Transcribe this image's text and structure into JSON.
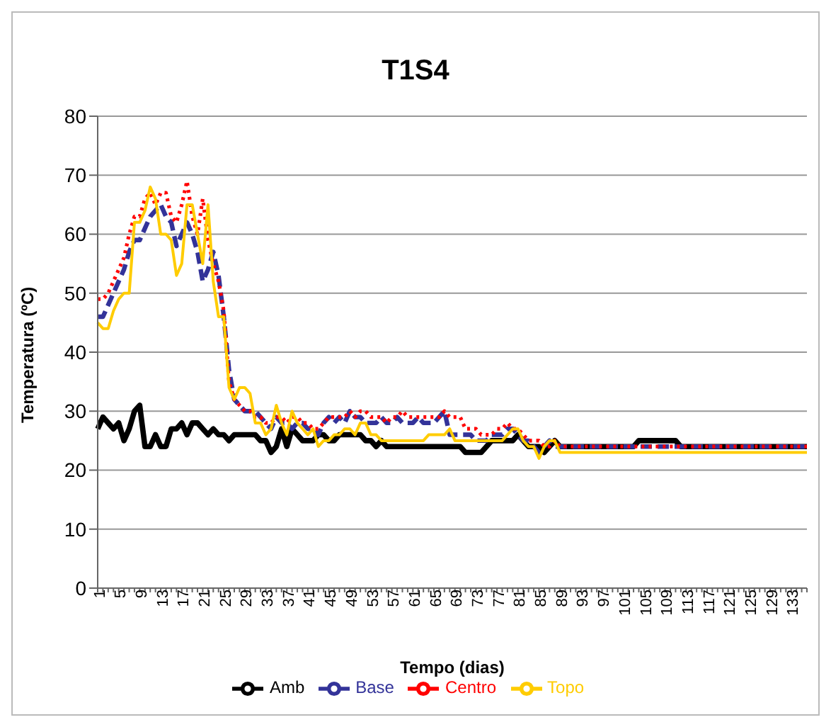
{
  "chart_data": {
    "type": "line",
    "title": "T1S4",
    "xlabel": "Tempo (dias)",
    "ylabel": "Temperatura (ºC)",
    "categories": [
      "1",
      null,
      null,
      null,
      "5",
      null,
      null,
      null,
      "9",
      null,
      null,
      null,
      "13",
      null,
      null,
      null,
      "17",
      null,
      null,
      null,
      "21",
      null,
      null,
      null,
      "25",
      null,
      null,
      null,
      "29",
      null,
      null,
      null,
      "33",
      null,
      null,
      null,
      "37",
      null,
      null,
      null,
      "41",
      null,
      null,
      null,
      "45",
      null,
      null,
      null,
      "49",
      null,
      null,
      null,
      "53",
      null,
      null,
      null,
      "57",
      null,
      null,
      null,
      "61",
      null,
      null,
      null,
      "65",
      null,
      null,
      null,
      "69",
      null,
      null,
      null,
      "73",
      null,
      null,
      null,
      "77",
      null,
      null,
      null,
      "81",
      null,
      null,
      null,
      "85",
      null,
      null,
      null,
      "89",
      null,
      null,
      null,
      "93",
      null,
      null,
      null,
      "97",
      null,
      null,
      null,
      "101",
      null,
      null,
      null,
      "105",
      null,
      null,
      null,
      "109",
      null,
      null,
      null,
      "113",
      null,
      null,
      null,
      "117",
      null,
      null,
      null,
      "121",
      null,
      null,
      null,
      "125",
      null,
      null,
      null,
      "129",
      null,
      null,
      null,
      "133",
      null,
      null,
      null
    ],
    "series": [
      {
        "name": "Amb",
        "color": "#000000",
        "line_style": "solid",
        "values": [
          27,
          29,
          28,
          27,
          28,
          25,
          27,
          30,
          31,
          24,
          24,
          26,
          24,
          24,
          27,
          27,
          28,
          26,
          28,
          28,
          27,
          26,
          27,
          26,
          26,
          25,
          26,
          26,
          26,
          26,
          26,
          25,
          25,
          23,
          24,
          27,
          24,
          27,
          26,
          25,
          25,
          25,
          26,
          26,
          25,
          25,
          26,
          26,
          26,
          26,
          26,
          25,
          25,
          24,
          25,
          24,
          24,
          24,
          24,
          24,
          24,
          24,
          24,
          24,
          24,
          24,
          24,
          24,
          24,
          24,
          23,
          23,
          23,
          23,
          24,
          25,
          25,
          25,
          25,
          25,
          26,
          25,
          24,
          24,
          24,
          23,
          24,
          25,
          24,
          24,
          24,
          24,
          24,
          24,
          24,
          24,
          24,
          24,
          24,
          24,
          24,
          24,
          24,
          25,
          25,
          25,
          25,
          25,
          25,
          25,
          25,
          24,
          24,
          24,
          24,
          24,
          24,
          24,
          24,
          24,
          24,
          24,
          24,
          24,
          24,
          24,
          24,
          24,
          24,
          24,
          24,
          24,
          24,
          24,
          24,
          24
        ]
      },
      {
        "name": "Base",
        "color": "#333399",
        "line_style": "dashed",
        "values": [
          46,
          46,
          48,
          50,
          52,
          54,
          57,
          59,
          59,
          61,
          63,
          64,
          65,
          63,
          62,
          58,
          60,
          62,
          60,
          57,
          52,
          54,
          57,
          53,
          46,
          37,
          32,
          31,
          30,
          30,
          30,
          29,
          28,
          27,
          29,
          28,
          28,
          27,
          28,
          28,
          27,
          27,
          26,
          28,
          29,
          28,
          29,
          28,
          30,
          29,
          29,
          28,
          28,
          28,
          29,
          28,
          28,
          29,
          28,
          28,
          28,
          29,
          28,
          28,
          28,
          29,
          30,
          26,
          26,
          26,
          26,
          26,
          25,
          25,
          25,
          26,
          26,
          26,
          27,
          27,
          26,
          25,
          25,
          24,
          23,
          24,
          25,
          24,
          24,
          24,
          24,
          24,
          24,
          24,
          24,
          24,
          24,
          24,
          24,
          24,
          24,
          24,
          24,
          24,
          24,
          24,
          24,
          24,
          24,
          24,
          24,
          24,
          24,
          24,
          24,
          24,
          24,
          24,
          24,
          24,
          24,
          24,
          24,
          24,
          24,
          24,
          24,
          24,
          24,
          24,
          24,
          24,
          24,
          24,
          24,
          24
        ]
      },
      {
        "name": "Centro",
        "color": "#ff0000",
        "line_style": "dotted",
        "values": [
          49,
          49,
          50,
          52,
          54,
          56,
          60,
          63,
          63,
          66,
          67,
          65,
          67,
          67,
          63,
          62,
          65,
          69,
          63,
          60,
          66,
          59,
          55,
          52,
          47,
          35,
          32,
          31,
          30,
          30,
          29,
          29,
          28,
          28,
          29,
          29,
          28,
          29,
          29,
          28,
          28,
          27,
          27,
          28,
          29,
          29,
          29,
          29,
          30,
          29,
          30,
          30,
          29,
          29,
          29,
          28,
          29,
          29,
          30,
          29,
          29,
          29,
          29,
          29,
          29,
          29,
          30,
          29,
          29,
          29,
          27,
          27,
          27,
          26,
          26,
          26,
          27,
          27,
          28,
          27,
          27,
          26,
          25,
          25,
          25,
          24,
          24,
          25,
          24,
          24,
          24,
          24,
          24,
          24,
          24,
          24,
          24,
          24,
          24,
          24,
          24,
          24,
          24,
          24,
          24,
          24,
          24,
          24,
          24,
          24,
          24,
          24,
          24,
          24,
          24,
          24,
          24,
          24,
          24,
          24,
          24,
          24,
          24,
          24,
          24,
          24,
          24,
          24,
          24,
          24,
          24,
          24,
          24,
          24,
          24,
          24
        ]
      },
      {
        "name": "Topo",
        "color": "#ffcc00",
        "line_style": "solid",
        "values": [
          45,
          44,
          44,
          47,
          49,
          50,
          50,
          62,
          62,
          64,
          68,
          66,
          60,
          60,
          59,
          53,
          55,
          65,
          65,
          60,
          55,
          65,
          52,
          46,
          46,
          34,
          32,
          34,
          34,
          33,
          28,
          28,
          26,
          27,
          31,
          28,
          26,
          30,
          28,
          27,
          26,
          27,
          24,
          25,
          25,
          26,
          26,
          27,
          27,
          26,
          28,
          28,
          26,
          26,
          25,
          25,
          25,
          25,
          25,
          25,
          25,
          25,
          25,
          26,
          26,
          26,
          26,
          27,
          25,
          25,
          25,
          25,
          25,
          25,
          25,
          25,
          25,
          25,
          26,
          27,
          27,
          25,
          24,
          24,
          22,
          24,
          25,
          25,
          23,
          23,
          23,
          23,
          23,
          23,
          23,
          23,
          23,
          23,
          23,
          23,
          23,
          23,
          23,
          23,
          23,
          23,
          23,
          23,
          23,
          23,
          23,
          23,
          23,
          23,
          23,
          23,
          23,
          23,
          23,
          23,
          23,
          23,
          23,
          23,
          23,
          23,
          23,
          23,
          23,
          23,
          23,
          23,
          23,
          23,
          23,
          23
        ]
      }
    ],
    "ylim": [
      0,
      80
    ],
    "yticks": [
      0,
      10,
      20,
      30,
      40,
      50,
      60,
      70,
      80
    ],
    "grid": "y",
    "legend": "bottom",
    "marker": "none"
  }
}
